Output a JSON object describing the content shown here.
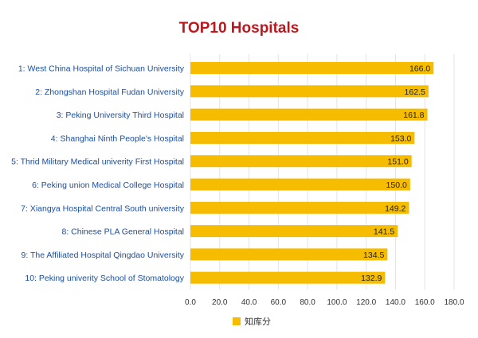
{
  "chart_data": {
    "type": "bar",
    "orientation": "horizontal",
    "title": "TOP10 Hospitals",
    "categories": [
      "1: West China Hospital of Sichuan University",
      "2: Zhongshan Hospital Fudan University",
      "3: Peking University Third Hospital",
      "4: Shanghai Ninth People's Hospital",
      "5: Thrid Military Medical univerity First Hospital",
      "6: Peking union Medical College Hospital",
      "7: Xiangya Hospital Central South university",
      "8: Chinese PLA General Hospital",
      "9: The Affiliated Hospital Qingdao University",
      "10: Peking univerity School of Stomatology"
    ],
    "series": [
      {
        "name": "知库分",
        "color": "#f5bc00",
        "values": [
          166.0,
          162.5,
          161.8,
          153.0,
          151.0,
          150.0,
          149.2,
          141.5,
          134.5,
          132.9
        ],
        "labels": [
          "166.0",
          "162.5",
          "161.8",
          "153.0",
          "151.0",
          "150.0",
          "149.2",
          "141.5",
          "134.5",
          "132.9"
        ]
      }
    ],
    "xlim": [
      0,
      180
    ],
    "x_ticks": [
      "0.0",
      "20.0",
      "40.0",
      "60.0",
      "80.0",
      "100.0",
      "120.0",
      "140.0",
      "160.0",
      "180.0"
    ],
    "grid": true,
    "legend_position": "bottom",
    "colors": {
      "title": "#c0151b",
      "category_text": "#1a4fa0",
      "bar": "#f5bc00",
      "grid": "#e3e3e3"
    }
  }
}
